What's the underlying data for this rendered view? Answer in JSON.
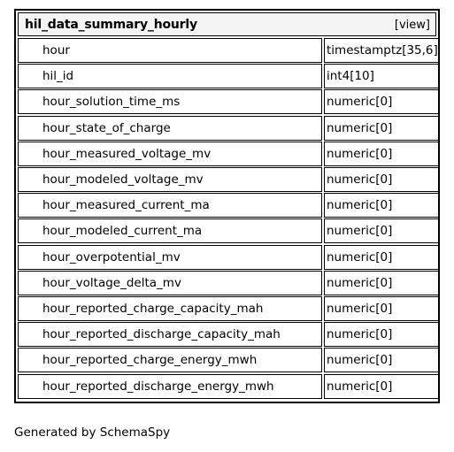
{
  "table": {
    "title": "hil_data_summary_hourly",
    "view_label": "[view]",
    "columns": [
      {
        "name": "hour",
        "type": "timestamptz[35,6]"
      },
      {
        "name": "hil_id",
        "type": "int4[10]"
      },
      {
        "name": "hour_solution_time_ms",
        "type": "numeric[0]"
      },
      {
        "name": "hour_state_of_charge",
        "type": "numeric[0]"
      },
      {
        "name": "hour_measured_voltage_mv",
        "type": "numeric[0]"
      },
      {
        "name": "hour_modeled_voltage_mv",
        "type": "numeric[0]"
      },
      {
        "name": "hour_measured_current_ma",
        "type": "numeric[0]"
      },
      {
        "name": "hour_modeled_current_ma",
        "type": "numeric[0]"
      },
      {
        "name": "hour_overpotential_mv",
        "type": "numeric[0]"
      },
      {
        "name": "hour_voltage_delta_mv",
        "type": "numeric[0]"
      },
      {
        "name": "hour_reported_charge_capacity_mah",
        "type": "numeric[0]"
      },
      {
        "name": "hour_reported_discharge_capacity_mah",
        "type": "numeric[0]"
      },
      {
        "name": "hour_reported_charge_energy_mwh",
        "type": "numeric[0]"
      },
      {
        "name": "hour_reported_discharge_energy_mwh",
        "type": "numeric[0]"
      }
    ]
  },
  "footer": {
    "text": "Generated by SchemaSpy"
  }
}
